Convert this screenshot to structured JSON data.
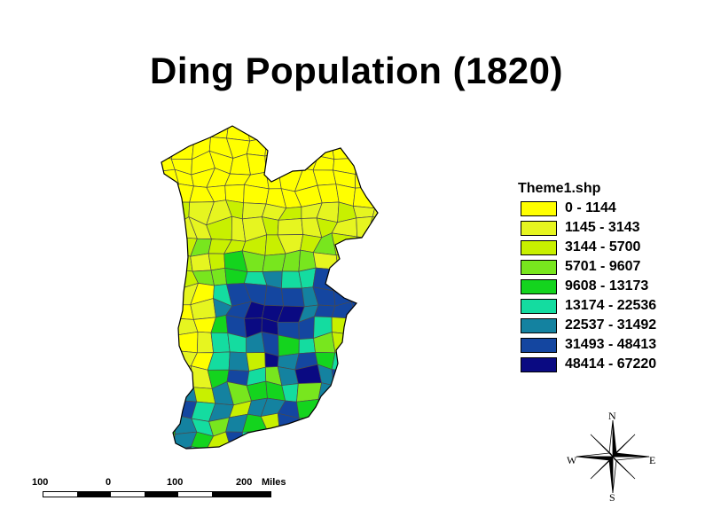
{
  "title": "Ding Population (1820)",
  "legend": {
    "title": "Theme1.shp",
    "classes": [
      {
        "label": "0 - 1144",
        "color": "#ffff00"
      },
      {
        "label": "1145 - 3143",
        "color": "#e6f520"
      },
      {
        "label": "3144 - 5700",
        "color": "#c8f000"
      },
      {
        "label": "5701 - 9607",
        "color": "#78e61e"
      },
      {
        "label": "9608 - 13173",
        "color": "#14d41e"
      },
      {
        "label": "13174 - 22536",
        "color": "#14dca0"
      },
      {
        "label": "22537 - 31492",
        "color": "#1482a0"
      },
      {
        "label": "31493 - 48413",
        "color": "#1446a0"
      },
      {
        "label": "48414 - 67220",
        "color": "#0a0a82"
      }
    ]
  },
  "compass": {
    "n": "N",
    "s": "S",
    "e": "E",
    "w": "W"
  },
  "scale_bar": {
    "labels": [
      "100",
      "0",
      "100",
      "200"
    ],
    "unit": "Miles"
  }
}
